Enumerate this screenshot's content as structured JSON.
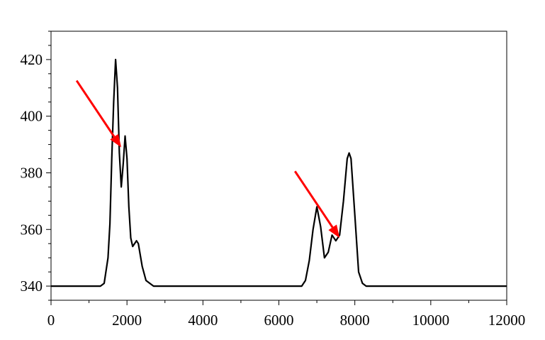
{
  "chart_data": {
    "type": "line",
    "title": "",
    "xlabel": "",
    "ylabel": "",
    "xlim": [
      0,
      12000
    ],
    "ylim": [
      335,
      430
    ],
    "x_ticks": [
      0,
      2000,
      4000,
      6000,
      8000,
      10000,
      12000
    ],
    "x_tick_labels": [
      "0",
      "2000",
      "4000",
      "6000",
      "8000",
      "10000",
      "12000"
    ],
    "y_ticks": [
      340,
      360,
      380,
      400,
      420
    ],
    "y_tick_labels": [
      "340",
      "360",
      "380",
      "400",
      "420"
    ],
    "grid": false,
    "legend": "none",
    "series": [
      {
        "color": "#000000",
        "x": [
          0,
          1300,
          1400,
          1500,
          1550,
          1600,
          1650,
          1700,
          1750,
          1800,
          1850,
          1900,
          1950,
          2000,
          2050,
          2100,
          2150,
          2200,
          2250,
          2300,
          2350,
          2400,
          2500,
          2600,
          2700,
          3000,
          6600,
          6700,
          6800,
          6900,
          7000,
          7100,
          7200,
          7300,
          7400,
          7500,
          7600,
          7700,
          7800,
          7850,
          7900,
          8000,
          8100,
          8200,
          8300,
          12000
        ],
        "y": [
          340,
          340,
          341,
          350,
          362,
          385,
          405,
          420,
          410,
          387,
          375,
          383,
          393,
          385,
          368,
          357,
          354,
          355,
          356,
          355,
          351,
          347,
          342,
          341,
          340,
          340,
          340,
          342,
          349,
          360,
          368,
          361,
          350,
          352,
          358,
          356,
          358,
          370,
          385,
          387,
          385,
          365,
          345,
          341,
          340,
          340
        ]
      }
    ],
    "annotations": [
      {
        "type": "arrow",
        "color": "#ff0000",
        "target_x": 1850,
        "target_y": 389
      },
      {
        "type": "arrow",
        "color": "#ff0000",
        "target_x": 7600,
        "target_y": 357
      }
    ]
  }
}
